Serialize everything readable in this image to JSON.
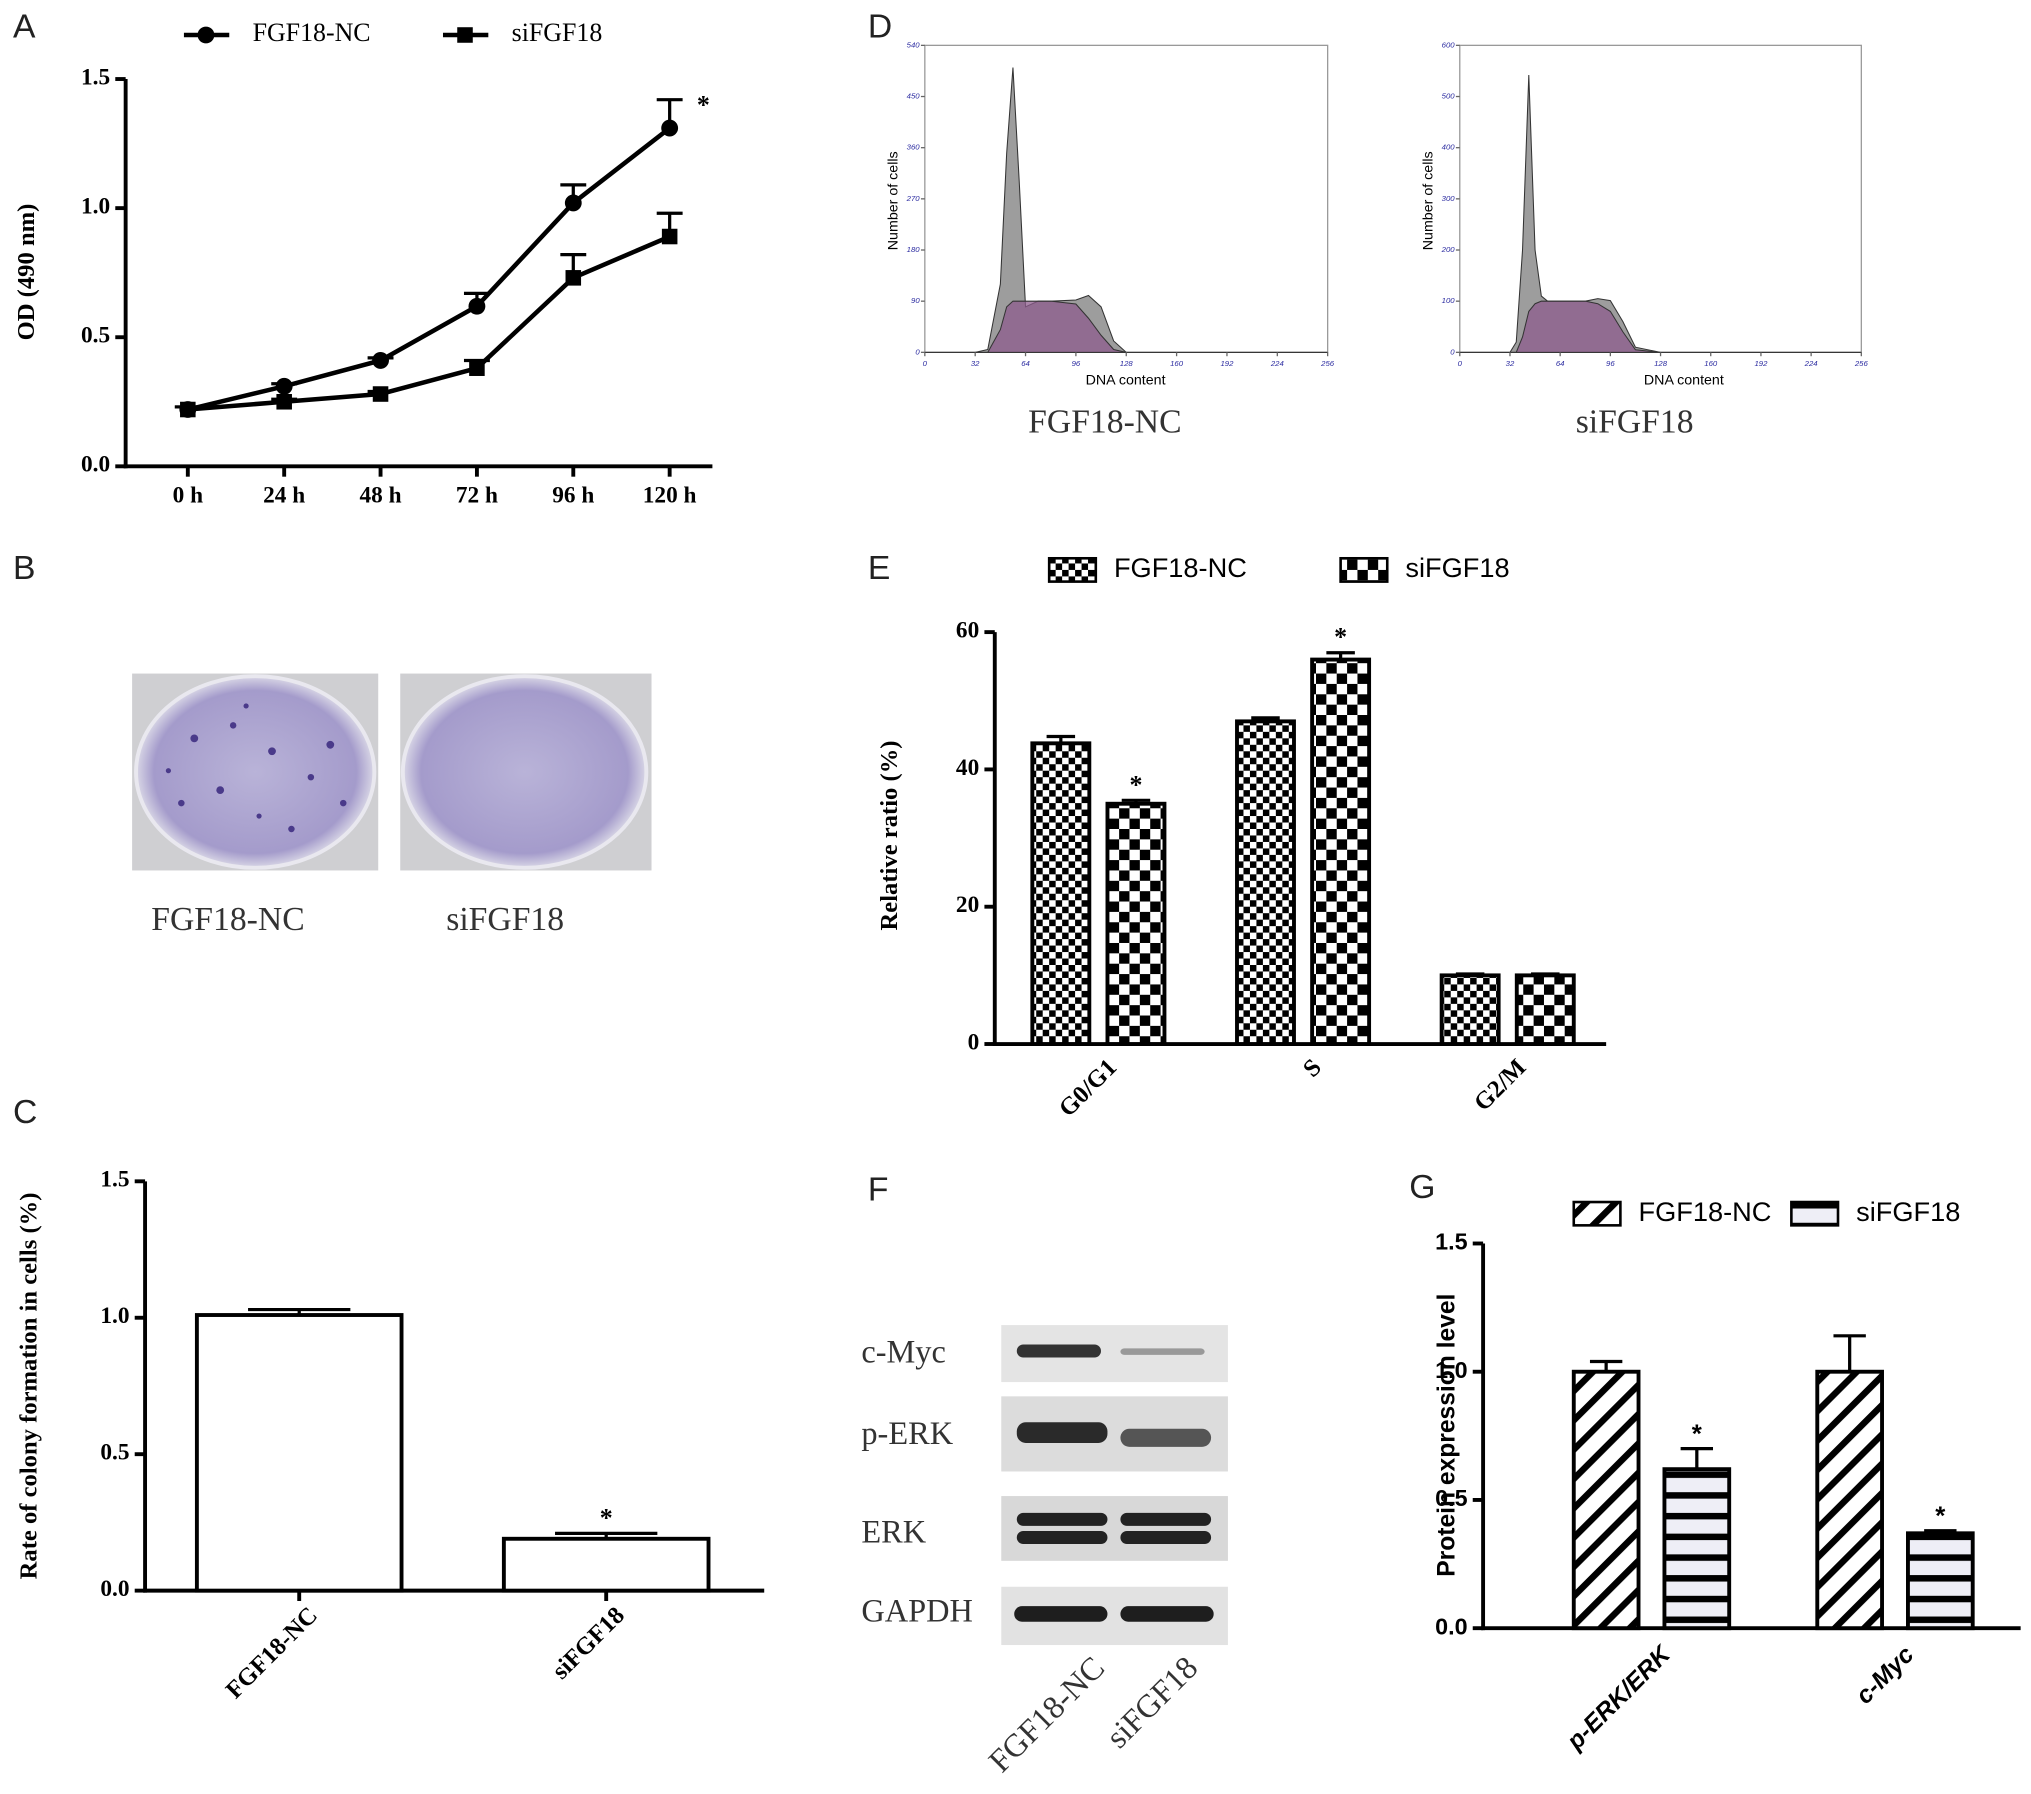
{
  "panel_labels": [
    "A",
    "B",
    "C",
    "D",
    "E",
    "F",
    "G"
  ],
  "colony_images": {
    "captions": [
      "FGF18-NC",
      "siFGF18"
    ]
  },
  "western_blot": {
    "proteins": [
      "c-Myc",
      "p-ERK",
      "ERK",
      "GAPDH"
    ],
    "lanes": [
      "FGF18-NC",
      "siFGF18"
    ]
  },
  "chart_data": [
    {
      "type": "line",
      "y_label": "OD (490 nm)",
      "categories": [
        "0 h",
        "24 h",
        "48 h",
        "72 h",
        "96 h",
        "120 h"
      ],
      "series": [
        {
          "name": "FGF18-NC",
          "color": "#000000",
          "marker": "circle",
          "values": [
            0.22,
            0.31,
            0.41,
            0.62,
            1.02,
            1.31
          ],
          "errors": [
            0.01,
            0.01,
            0.01,
            0.05,
            0.07,
            0.11
          ],
          "annotations": [
            null,
            null,
            null,
            null,
            null,
            "*"
          ]
        },
        {
          "name": "siFGF18",
          "color": "#000000",
          "marker": "square",
          "values": [
            0.22,
            0.25,
            0.28,
            0.38,
            0.73,
            0.89
          ],
          "errors": [
            0.01,
            0.01,
            0.01,
            0.03,
            0.09,
            0.09
          ]
        }
      ],
      "ylim": [
        0,
        1.5
      ],
      "yticks": [
        {
          "value": 0,
          "label": "0.0"
        },
        {
          "value": 0.5,
          "label": "0.5"
        },
        {
          "value": 1,
          "label": "1.0"
        },
        {
          "value": 1.5,
          "label": "1.5"
        }
      ]
    },
    {
      "type": "bar",
      "y_label": "Rate of colony formation in cells (%)",
      "categories": [
        "FGF18-NC",
        "siFGF18"
      ],
      "series": [
        {
          "color": "#ffffff",
          "values": [
            1.01,
            0.19
          ],
          "errors": [
            0.02,
            0.02
          ],
          "annotations": [
            null,
            "*"
          ]
        }
      ],
      "ylim": [
        0,
        1.5
      ],
      "yticks": [
        {
          "value": 0,
          "label": "0.0"
        },
        {
          "value": 0.5,
          "label": "0.5"
        },
        {
          "value": 1,
          "label": "1.0"
        },
        {
          "value": 1.5,
          "label": "1.5"
        }
      ]
    },
    {
      "type": "flow",
      "y_label": "Number of cells",
      "x_label": "DNA content",
      "caption": "FGF18-NC",
      "x": [
        0,
        16,
        32,
        40,
        48,
        52,
        56,
        60,
        64,
        72,
        80,
        96,
        104,
        112,
        120,
        128,
        160,
        192,
        224,
        256
      ],
      "series": [
        {
          "color": "#8c8c8c",
          "values": [
            0,
            0,
            0,
            5,
            120,
            350,
            501,
            300,
            80,
            90,
            90,
            92,
            100,
            80,
            20,
            0,
            0,
            0,
            0,
            0
          ]
        },
        {
          "color": "#8e5c8e",
          "values": [
            0,
            0,
            0,
            0,
            40,
            80,
            90,
            90,
            90,
            90,
            90,
            85,
            60,
            30,
            5,
            0,
            0,
            0,
            0,
            0
          ]
        }
      ],
      "xlim": [
        0,
        256
      ],
      "xticks": [
        0,
        32,
        64,
        96,
        128,
        160,
        192,
        224,
        256
      ],
      "ylim": [
        0,
        540
      ],
      "yticks": [
        0,
        90,
        180,
        270,
        360,
        450,
        540
      ]
    },
    {
      "type": "flow",
      "y_label": "Number of cells",
      "x_label": "DNA content",
      "caption": "siFGF18",
      "x": [
        0,
        16,
        32,
        36,
        40,
        44,
        48,
        52,
        56,
        64,
        80,
        88,
        96,
        104,
        112,
        128,
        160,
        192,
        224,
        256
      ],
      "series": [
        {
          "color": "#8c8c8c",
          "values": [
            0,
            0,
            0,
            20,
            200,
            542,
            200,
            110,
            100,
            100,
            100,
            105,
            101,
            60,
            10,
            0,
            0,
            0,
            0,
            0
          ]
        },
        {
          "color": "#8e5c8e",
          "values": [
            0,
            0,
            0,
            0,
            30,
            80,
            95,
            100,
            100,
            100,
            100,
            95,
            80,
            40,
            5,
            0,
            0,
            0,
            0,
            0
          ]
        }
      ],
      "xlim": [
        0,
        256
      ],
      "xticks": [
        0,
        32,
        64,
        96,
        128,
        160,
        192,
        224,
        256
      ],
      "ylim": [
        0,
        600
      ],
      "yticks": [
        0,
        100,
        200,
        300,
        400,
        500,
        600
      ]
    },
    {
      "type": "bar",
      "y_label": "Relative ratio (%)",
      "categories": [
        "G0/G1",
        "S",
        "G2/M"
      ],
      "series": [
        {
          "name": "FGF18-NC",
          "color": "#000000",
          "pattern": "checker-small",
          "values": [
            43.8,
            47,
            10
          ],
          "errors": [
            1,
            0.5,
            0.2
          ]
        },
        {
          "name": "siFGF18",
          "color": "#000000",
          "pattern": "checker-large",
          "values": [
            35,
            56,
            10
          ],
          "errors": [
            0.5,
            1,
            0.2
          ],
          "annotations": [
            "*",
            "*",
            null
          ]
        }
      ],
      "ylim": [
        0,
        60
      ],
      "yticks": [
        0,
        20,
        40,
        60
      ]
    },
    {
      "type": "bar",
      "y_label": "Protein expression level",
      "categories": [
        "p-ERK/ERK",
        "c-Myc"
      ],
      "series": [
        {
          "name": "FGF18-NC",
          "color": "#000000",
          "pattern": "diagonal",
          "values": [
            1.0,
            1.0
          ],
          "errors": [
            0.04,
            0.14
          ]
        },
        {
          "name": "siFGF18",
          "color": "#000000",
          "pattern": "horizontal",
          "values": [
            0.62,
            0.37
          ],
          "errors": [
            0.08,
            0.01
          ],
          "annotations": [
            "*",
            "*"
          ]
        }
      ],
      "ylim": [
        0,
        1.5
      ],
      "yticks": [
        {
          "value": 0,
          "label": "0.0"
        },
        {
          "value": 0.5,
          "label": "0.5"
        },
        {
          "value": 1,
          "label": "1.0"
        },
        {
          "value": 1.5,
          "label": "1.5"
        }
      ]
    }
  ]
}
